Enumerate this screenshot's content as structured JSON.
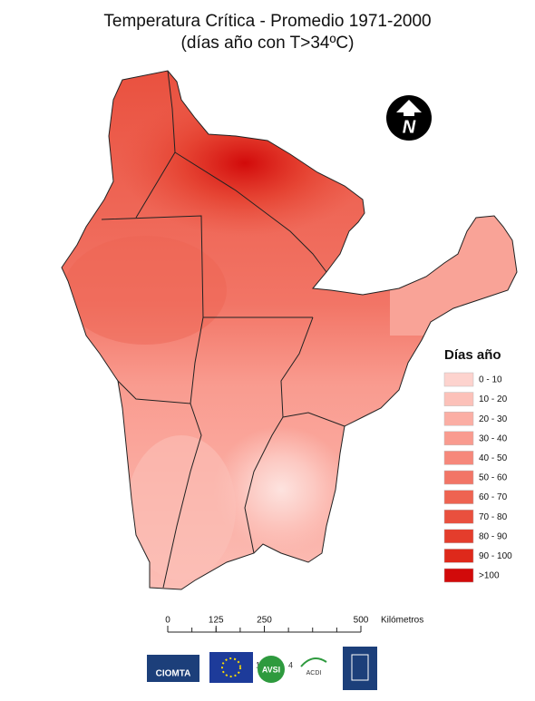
{
  "title": "Temperatura Crítica - Promedio 1971-2000",
  "subtitle": "(días año con T>34ºC)",
  "north": "N",
  "legend": {
    "title": "Días año",
    "items": [
      {
        "label": "0 - 10",
        "color": "#fdd3ce"
      },
      {
        "label": "10 - 20",
        "color": "#fcc1b9"
      },
      {
        "label": "20 - 30",
        "color": "#fbaea4"
      },
      {
        "label": "30 - 40",
        "color": "#f99b8f"
      },
      {
        "label": "40 - 50",
        "color": "#f6887b"
      },
      {
        "label": "50 - 60",
        "color": "#f27566"
      },
      {
        "label": "60 - 70",
        "color": "#ee6351"
      },
      {
        "label": "70 - 80",
        "color": "#e9503e"
      },
      {
        "label": "80 - 90",
        "color": "#e43d2c"
      },
      {
        "label": "90 - 100",
        "color": "#de291b"
      },
      {
        "label": ">100",
        "color": "#d20a0a"
      }
    ]
  },
  "scale": {
    "ticks": [
      0,
      125,
      250,
      500
    ],
    "unit": "Kilómetros"
  },
  "logos": {
    "ciomta": "CIOMTA",
    "avsi": "AVSI",
    "acdi": "ACDI",
    "mark1": "1",
    "mark2": "4"
  }
}
